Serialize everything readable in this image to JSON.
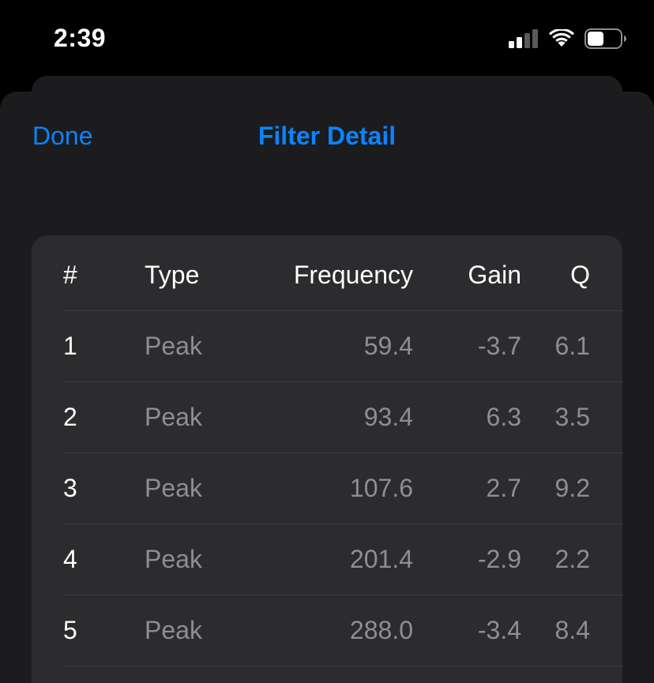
{
  "status_bar": {
    "time": "2:39",
    "signal_icon": "cellular-signal-icon",
    "wifi_icon": "wifi-icon",
    "battery_icon": "battery-icon",
    "battery_level": 0.5
  },
  "nav": {
    "done_label": "Done",
    "title": "Filter Detail"
  },
  "colors": {
    "accent": "#0a84ff",
    "background": "#000000",
    "sheet": "#1c1c1e",
    "card": "#2c2c2e",
    "secondary_text": "#8e8e93"
  },
  "table": {
    "headers": {
      "num": "#",
      "type": "Type",
      "frequency": "Frequency",
      "gain": "Gain",
      "q": "Q"
    },
    "rows": [
      {
        "num": "1",
        "type": "Peak",
        "frequency": "59.4",
        "gain": "-3.7",
        "q": "6.1"
      },
      {
        "num": "2",
        "type": "Peak",
        "frequency": "93.4",
        "gain": "6.3",
        "q": "3.5"
      },
      {
        "num": "3",
        "type": "Peak",
        "frequency": "107.6",
        "gain": "2.7",
        "q": "9.2"
      },
      {
        "num": "4",
        "type": "Peak",
        "frequency": "201.4",
        "gain": "-2.9",
        "q": "2.2"
      },
      {
        "num": "5",
        "type": "Peak",
        "frequency": "288.0",
        "gain": "-3.4",
        "q": "8.4"
      }
    ]
  }
}
